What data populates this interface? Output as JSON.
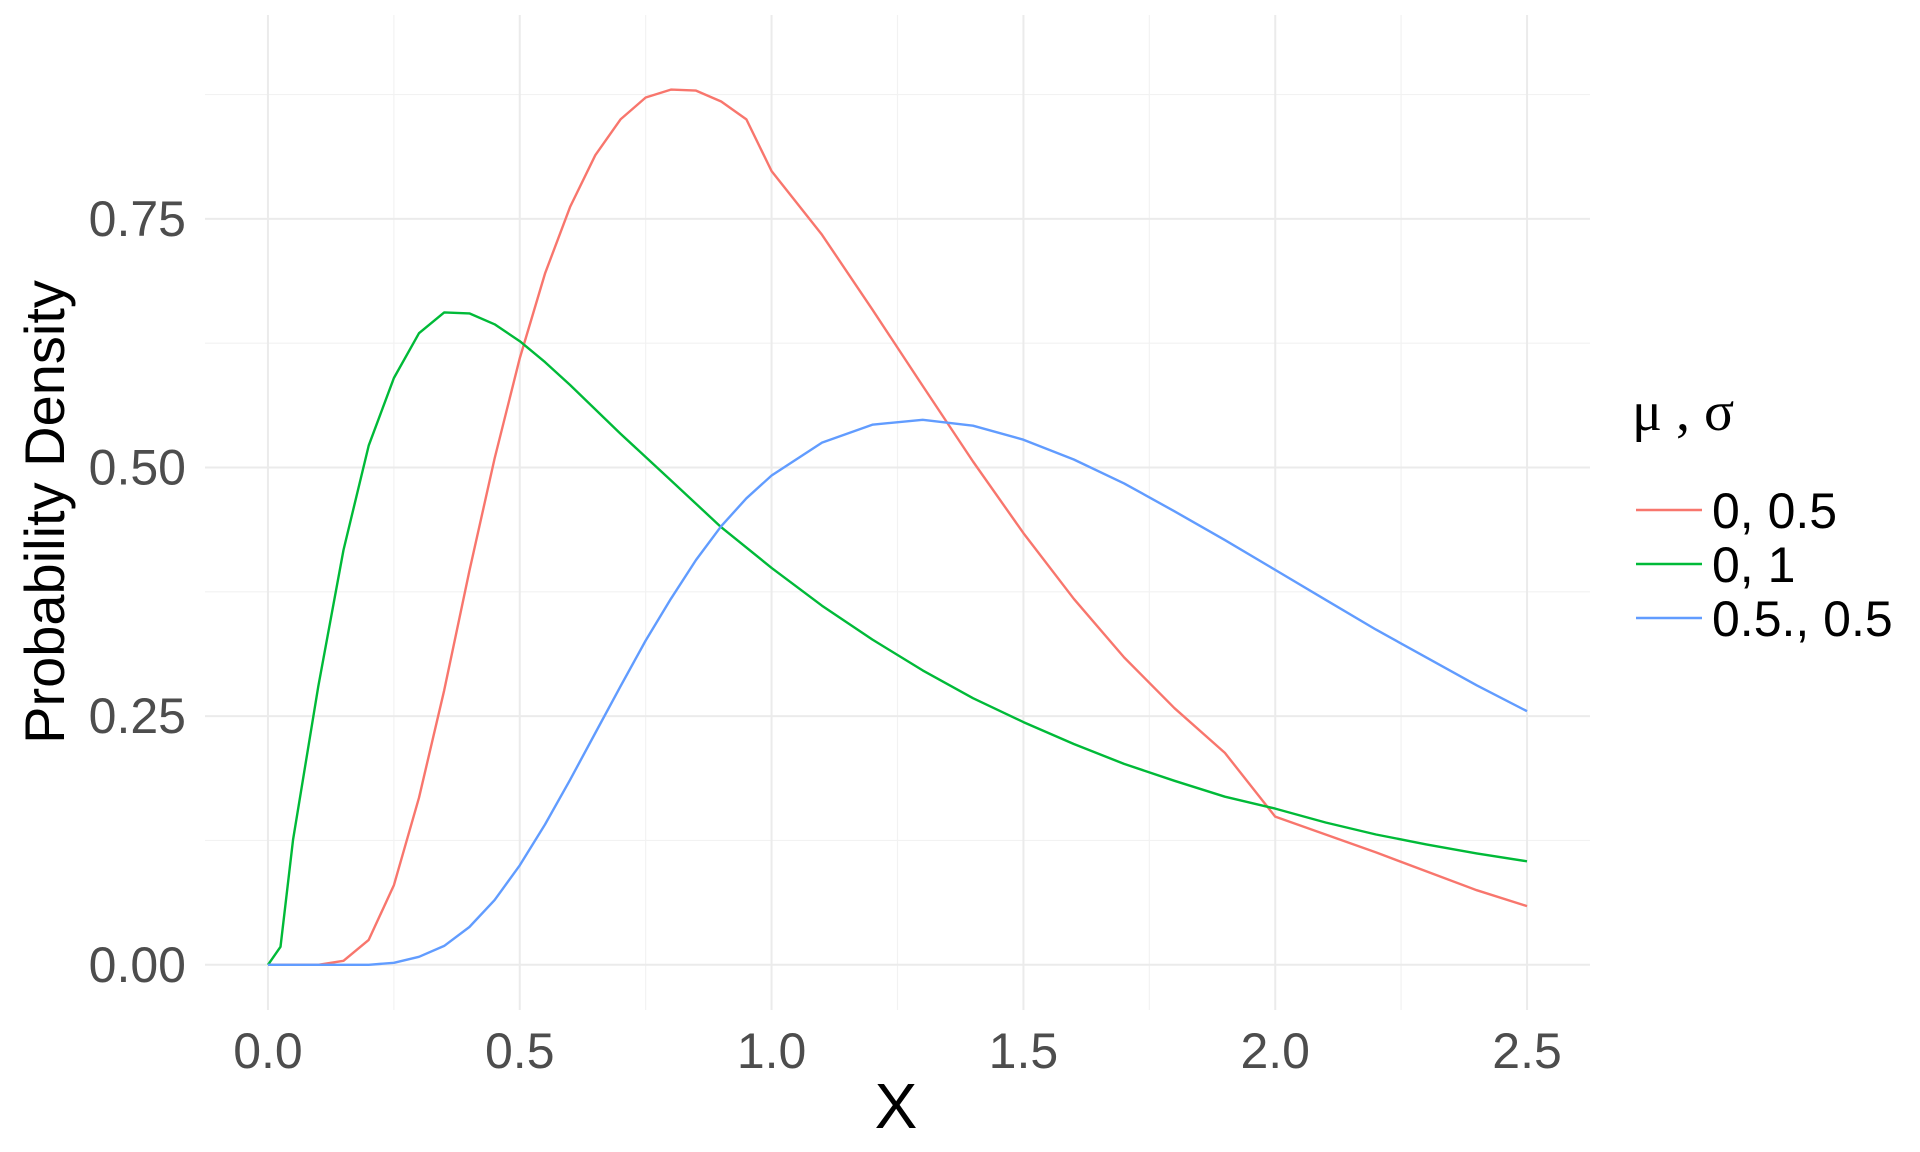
{
  "chart_data": {
    "type": "line",
    "xlabel": "X",
    "ylabel": "Probability Density",
    "xlim": [
      -0.125,
      2.625
    ],
    "ylim": [
      -0.0455,
      0.955
    ],
    "x_ticks": [
      0.0,
      0.5,
      1.0,
      1.5,
      2.0,
      2.5
    ],
    "x_tick_labels": [
      "0.0",
      "0.5",
      "1.0",
      "1.5",
      "2.0",
      "2.5"
    ],
    "y_ticks": [
      0.0,
      0.25,
      0.5,
      0.75
    ],
    "y_tick_labels": [
      "0.00",
      "0.25",
      "0.50",
      "0.75"
    ],
    "grid": true,
    "legend": {
      "title": "μ , σ",
      "placement": "right"
    },
    "series": [
      {
        "name": "0, 0.5",
        "color": "#F8766D",
        "points": [
          [
            0.0,
            0.0
          ],
          [
            0.05,
            0.0
          ],
          [
            0.1,
            0.0
          ],
          [
            0.15,
            0.004
          ],
          [
            0.2,
            0.025
          ],
          [
            0.25,
            0.08
          ],
          [
            0.3,
            0.168
          ],
          [
            0.35,
            0.276
          ],
          [
            0.4,
            0.396
          ],
          [
            0.45,
            0.509
          ],
          [
            0.5,
            0.61
          ],
          [
            0.55,
            0.695
          ],
          [
            0.6,
            0.762
          ],
          [
            0.65,
            0.814
          ],
          [
            0.7,
            0.85
          ],
          [
            0.75,
            0.872
          ],
          [
            0.8,
            0.88
          ],
          [
            0.85,
            0.879
          ],
          [
            0.9,
            0.868
          ],
          [
            0.95,
            0.85
          ],
          [
            1.0,
            0.798
          ],
          [
            1.1,
            0.734
          ],
          [
            1.2,
            0.659
          ],
          [
            1.3,
            0.582
          ],
          [
            1.4,
            0.506
          ],
          [
            1.5,
            0.434
          ],
          [
            1.6,
            0.368
          ],
          [
            1.7,
            0.309
          ],
          [
            1.8,
            0.258
          ],
          [
            1.9,
            0.213
          ],
          [
            2.0,
            0.149
          ],
          [
            2.2,
            0.113
          ],
          [
            2.4,
            0.075
          ],
          [
            2.5,
            0.059
          ]
        ]
      },
      {
        "name": "0, 1",
        "color": "#00BA38",
        "points": [
          [
            0.0,
            0.0
          ],
          [
            0.025,
            0.018
          ],
          [
            0.05,
            0.126
          ],
          [
            0.1,
            0.28
          ],
          [
            0.15,
            0.417
          ],
          [
            0.2,
            0.522
          ],
          [
            0.25,
            0.59
          ],
          [
            0.3,
            0.635
          ],
          [
            0.35,
            0.656
          ],
          [
            0.4,
            0.655
          ],
          [
            0.45,
            0.644
          ],
          [
            0.5,
            0.627
          ],
          [
            0.55,
            0.606
          ],
          [
            0.6,
            0.583
          ],
          [
            0.7,
            0.534
          ],
          [
            0.8,
            0.487
          ],
          [
            0.9,
            0.44
          ],
          [
            1.0,
            0.399
          ],
          [
            1.1,
            0.361
          ],
          [
            1.2,
            0.327
          ],
          [
            1.3,
            0.296
          ],
          [
            1.4,
            0.268
          ],
          [
            1.5,
            0.244
          ],
          [
            1.6,
            0.222
          ],
          [
            1.7,
            0.202
          ],
          [
            1.8,
            0.185
          ],
          [
            1.9,
            0.169
          ],
          [
            2.0,
            0.157
          ],
          [
            2.1,
            0.143
          ],
          [
            2.2,
            0.131
          ],
          [
            2.3,
            0.121
          ],
          [
            2.4,
            0.112
          ],
          [
            2.5,
            0.104
          ]
        ]
      },
      {
        "name": "0.5., 0.5",
        "color": "#619CFF",
        "points": [
          [
            0.0,
            0.0
          ],
          [
            0.1,
            0.0
          ],
          [
            0.2,
            0.0
          ],
          [
            0.25,
            0.002
          ],
          [
            0.3,
            0.008
          ],
          [
            0.35,
            0.019
          ],
          [
            0.4,
            0.038
          ],
          [
            0.45,
            0.065
          ],
          [
            0.5,
            0.1
          ],
          [
            0.55,
            0.141
          ],
          [
            0.6,
            0.186
          ],
          [
            0.65,
            0.233
          ],
          [
            0.7,
            0.28
          ],
          [
            0.75,
            0.326
          ],
          [
            0.8,
            0.368
          ],
          [
            0.85,
            0.407
          ],
          [
            0.9,
            0.441
          ],
          [
            0.95,
            0.469
          ],
          [
            1.0,
            0.492
          ],
          [
            1.1,
            0.525
          ],
          [
            1.2,
            0.543
          ],
          [
            1.3,
            0.548
          ],
          [
            1.4,
            0.542
          ],
          [
            1.5,
            0.528
          ],
          [
            1.6,
            0.508
          ],
          [
            1.7,
            0.484
          ],
          [
            1.8,
            0.456
          ],
          [
            1.9,
            0.427
          ],
          [
            2.0,
            0.397
          ],
          [
            2.1,
            0.367
          ],
          [
            2.2,
            0.337
          ],
          [
            2.3,
            0.309
          ],
          [
            2.4,
            0.281
          ],
          [
            2.5,
            0.255
          ]
        ]
      }
    ]
  }
}
